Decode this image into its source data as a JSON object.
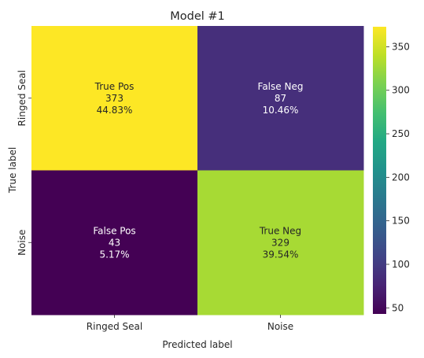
{
  "chart_data": {
    "type": "heatmap",
    "title": "Model #1",
    "xlabel": "Predicted label",
    "ylabel": "True label",
    "x_categories": [
      "Ringed Seal",
      "Noise"
    ],
    "y_categories": [
      "Ringed Seal",
      "Noise"
    ],
    "values": [
      [
        373,
        87
      ],
      [
        43,
        329
      ]
    ],
    "cell_labels": [
      [
        "True Pos",
        "False Neg"
      ],
      [
        "False Pos",
        "True Neg"
      ]
    ],
    "percentages": [
      [
        "44.83%",
        "10.46%"
      ],
      [
        "5.17%",
        "39.54%"
      ]
    ],
    "colorbar": {
      "min": 43,
      "max": 373,
      "ticks": [
        50,
        100,
        150,
        200,
        250,
        300,
        350
      ]
    },
    "colormap": "viridis"
  }
}
